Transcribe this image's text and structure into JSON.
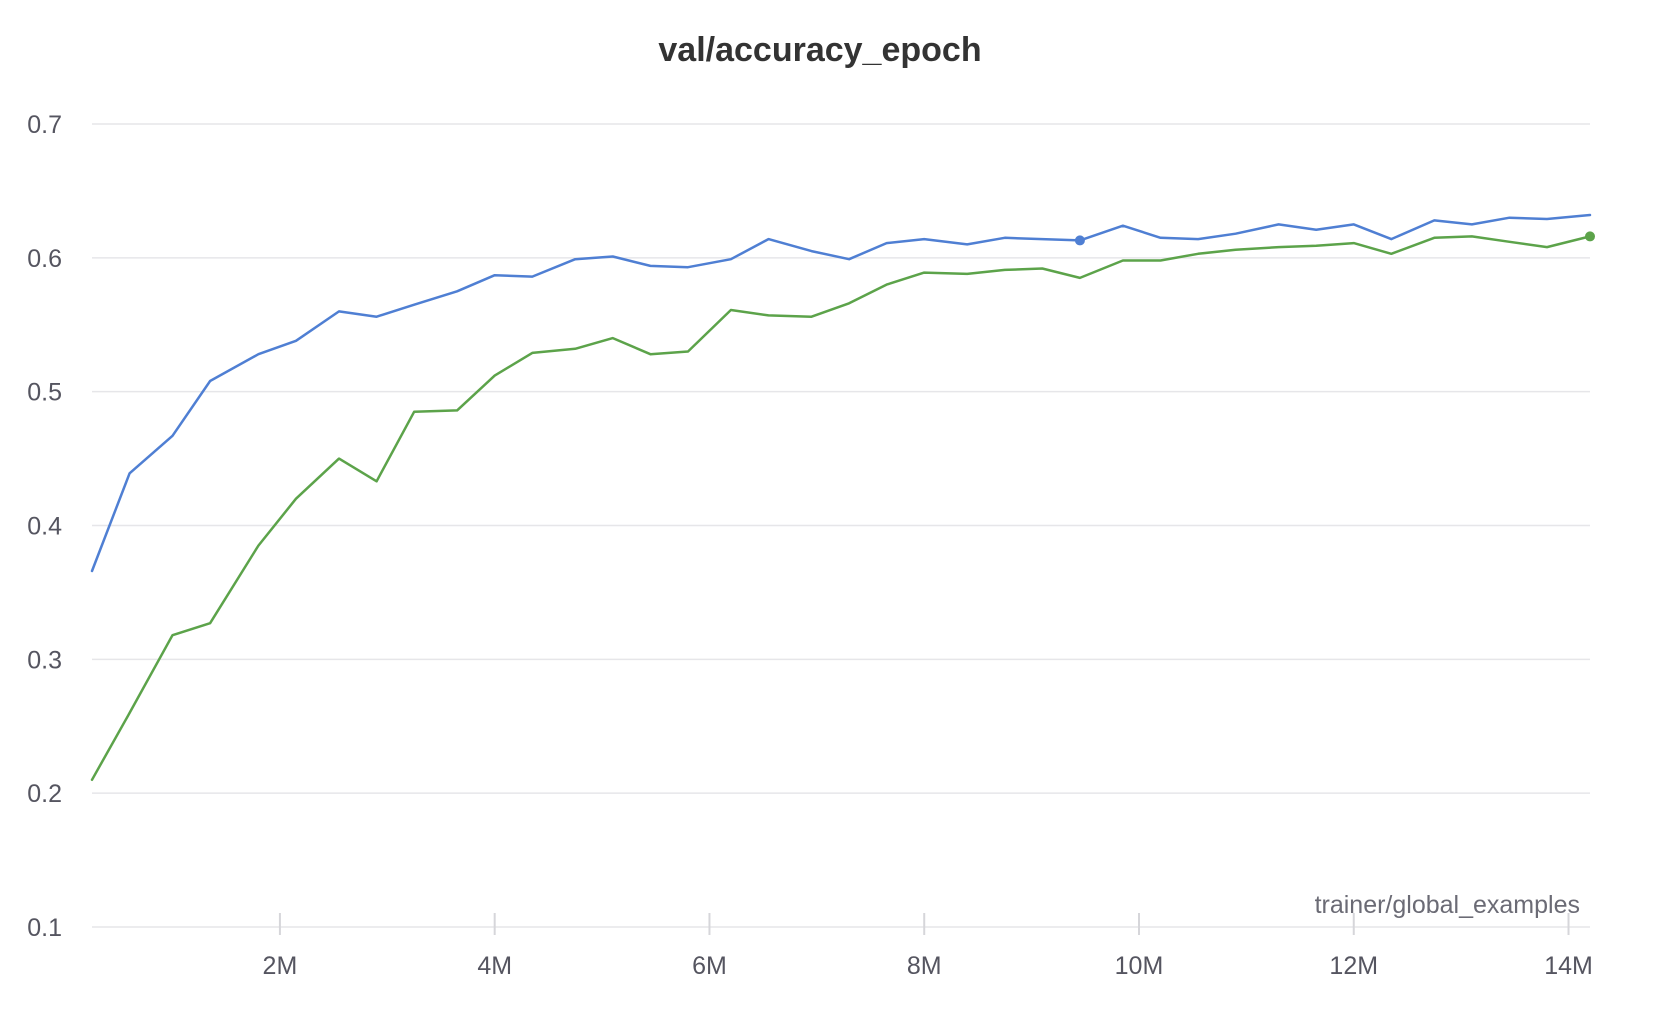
{
  "chart_data": {
    "type": "line",
    "title": "val/accuracy_epoch",
    "xlabel": "trainer/global_examples",
    "ylabel": "",
    "xlim": [
      250000,
      14200000
    ],
    "ylim": [
      0.1,
      0.7
    ],
    "x_ticks": [
      {
        "value": 2000000,
        "label": "2M"
      },
      {
        "value": 4000000,
        "label": "4M"
      },
      {
        "value": 6000000,
        "label": "6M"
      },
      {
        "value": 8000000,
        "label": "8M"
      },
      {
        "value": 10000000,
        "label": "10M"
      },
      {
        "value": 12000000,
        "label": "12M"
      },
      {
        "value": 14000000,
        "label": "14M"
      }
    ],
    "y_ticks": [
      {
        "value": 0.1,
        "label": "0.1"
      },
      {
        "value": 0.2,
        "label": "0.2"
      },
      {
        "value": 0.3,
        "label": "0.3"
      },
      {
        "value": 0.4,
        "label": "0.4"
      },
      {
        "value": 0.5,
        "label": "0.5"
      },
      {
        "value": 0.6,
        "label": "0.6"
      },
      {
        "value": 0.7,
        "label": "0.7"
      }
    ],
    "grid": "horizontal",
    "series": [
      {
        "color": "#4f7fd3",
        "x": [
          250000,
          600000,
          1000000,
          1350000,
          1800000,
          2150000,
          2550000,
          2900000,
          3250000,
          3650000,
          4000000,
          4350000,
          4750000,
          5100000,
          5450000,
          5800000,
          6200000,
          6550000,
          6950000,
          7300000,
          7650000,
          8000000,
          8400000,
          8750000,
          9100000,
          9450000,
          9850000,
          10200000,
          10550000,
          10900000,
          11300000,
          11650000,
          12000000,
          12350000,
          12750000,
          13100000,
          13450000,
          13800000,
          14200000
        ],
        "y": [
          0.366,
          0.439,
          0.467,
          0.508,
          0.528,
          0.538,
          0.56,
          0.556,
          0.565,
          0.575,
          0.587,
          0.586,
          0.599,
          0.601,
          0.594,
          0.593,
          0.599,
          0.614,
          0.605,
          0.599,
          0.611,
          0.614,
          0.61,
          0.615,
          0.614,
          0.613,
          0.624,
          0.615,
          0.614,
          0.618,
          0.625,
          0.621,
          0.625,
          0.614,
          0.628,
          0.625,
          0.63,
          0.629,
          0.632
        ],
        "marker_index": 25
      },
      {
        "color": "#5ca34a",
        "x": [
          250000,
          600000,
          1000000,
          1350000,
          1800000,
          2150000,
          2550000,
          2900000,
          3250000,
          3650000,
          4000000,
          4350000,
          4750000,
          5100000,
          5450000,
          5800000,
          6200000,
          6550000,
          6950000,
          7300000,
          7650000,
          8000000,
          8400000,
          8750000,
          9100000,
          9450000,
          9850000,
          10200000,
          10550000,
          10900000,
          11300000,
          11650000,
          12000000,
          12350000,
          12750000,
          13100000,
          13450000,
          13800000,
          14200000
        ],
        "y": [
          0.21,
          0.26,
          0.318,
          0.327,
          0.385,
          0.42,
          0.45,
          0.433,
          0.485,
          0.486,
          0.512,
          0.529,
          0.532,
          0.54,
          0.528,
          0.53,
          0.561,
          0.557,
          0.556,
          0.566,
          0.58,
          0.589,
          0.588,
          0.591,
          0.592,
          0.585,
          0.598,
          0.598,
          0.603,
          0.606,
          0.608,
          0.609,
          0.611,
          0.603,
          0.615,
          0.616,
          0.612,
          0.608,
          0.616
        ],
        "marker_index": 38
      }
    ]
  }
}
